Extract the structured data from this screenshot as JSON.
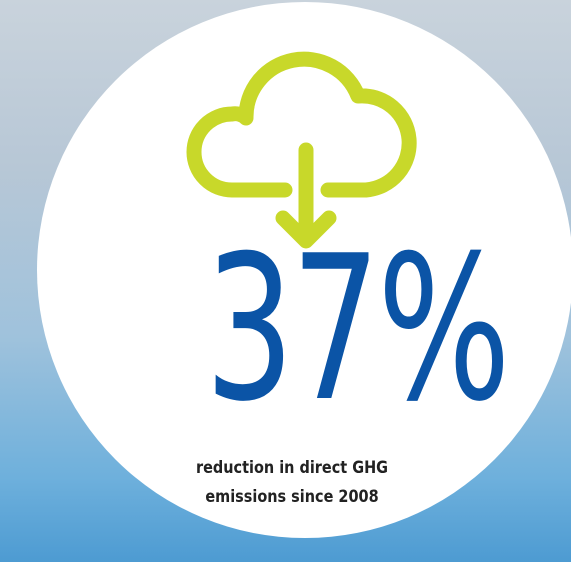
{
  "stat": {
    "value": "37%",
    "caption": [
      "reduction in direct GHG",
      "emissions since 2008"
    ]
  }
}
